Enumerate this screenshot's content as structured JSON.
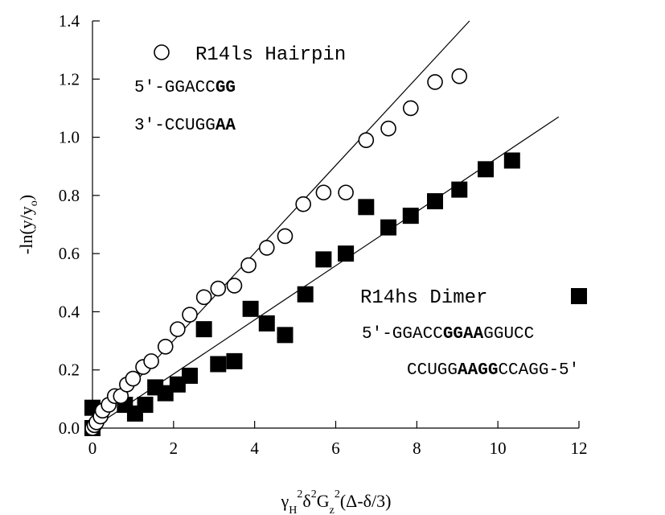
{
  "chart_data": {
    "type": "scatter",
    "title": "",
    "xlabel": {
      "base": "γ",
      "sub1": "H",
      "sup1": "2",
      "mid1": "δ",
      "sup2": "2",
      "mid2": "G",
      "sub2": "z",
      "sup3": "2",
      "tail": "(Δ-δ/3)"
    },
    "ylabel": {
      "base": "-ln(y/y",
      "sub": "o",
      "tail": ")"
    },
    "xlim": [
      0,
      12
    ],
    "ylim": [
      0,
      1.4
    ],
    "x_ticks": [
      "0",
      "2",
      "4",
      "6",
      "8",
      "10",
      "12"
    ],
    "y_ticks": [
      "0.0",
      "0.2",
      "0.4",
      "0.6",
      "0.8",
      "1.0",
      "1.2",
      "1.4"
    ],
    "grid": false,
    "series": [
      {
        "name": "R14ls Hairpin",
        "marker": "open-circle",
        "color": "#000000",
        "fit_line": {
          "x": [
            0,
            9.3
          ],
          "y": [
            0,
            1.4
          ]
        },
        "points": [
          [
            0.0,
            0.0
          ],
          [
            0.05,
            0.01
          ],
          [
            0.1,
            0.02
          ],
          [
            0.2,
            0.04
          ],
          [
            0.25,
            0.06
          ],
          [
            0.4,
            0.08
          ],
          [
            0.55,
            0.11
          ],
          [
            0.7,
            0.11
          ],
          [
            0.85,
            0.15
          ],
          [
            1.0,
            0.17
          ],
          [
            1.25,
            0.21
          ],
          [
            1.45,
            0.23
          ],
          [
            1.8,
            0.28
          ],
          [
            2.1,
            0.34
          ],
          [
            2.4,
            0.39
          ],
          [
            2.75,
            0.45
          ],
          [
            3.1,
            0.48
          ],
          [
            3.5,
            0.49
          ],
          [
            3.85,
            0.56
          ],
          [
            4.3,
            0.62
          ],
          [
            4.75,
            0.66
          ],
          [
            5.2,
            0.77
          ],
          [
            5.7,
            0.81
          ],
          [
            6.25,
            0.81
          ],
          [
            6.75,
            0.99
          ],
          [
            7.3,
            1.03
          ],
          [
            7.85,
            1.1
          ],
          [
            8.45,
            1.19
          ],
          [
            9.05,
            1.21
          ]
        ]
      },
      {
        "name": "R14hs Dimer",
        "marker": "filled-square",
        "color": "#000000",
        "fit_line": {
          "x": [
            0,
            11.5
          ],
          "y": [
            0,
            1.07
          ]
        },
        "points": [
          [
            0.0,
            0.0
          ],
          [
            0.0,
            0.07
          ],
          [
            0.8,
            0.08
          ],
          [
            1.05,
            0.05
          ],
          [
            1.3,
            0.08
          ],
          [
            1.55,
            0.14
          ],
          [
            1.8,
            0.12
          ],
          [
            2.1,
            0.15
          ],
          [
            2.4,
            0.18
          ],
          [
            2.75,
            0.34
          ],
          [
            3.1,
            0.22
          ],
          [
            3.5,
            0.23
          ],
          [
            3.9,
            0.41
          ],
          [
            4.3,
            0.36
          ],
          [
            4.75,
            0.32
          ],
          [
            5.25,
            0.46
          ],
          [
            5.7,
            0.58
          ],
          [
            6.25,
            0.6
          ],
          [
            6.75,
            0.76
          ],
          [
            7.3,
            0.69
          ],
          [
            7.85,
            0.73
          ],
          [
            8.45,
            0.78
          ],
          [
            9.05,
            0.82
          ],
          [
            9.7,
            0.89
          ],
          [
            10.35,
            0.92
          ]
        ]
      }
    ]
  },
  "legend": {
    "hairpin_label": "R14ls Hairpin",
    "hairpin_seq_top": {
      "plain": "5'-GGACC",
      "bold": "GG"
    },
    "hairpin_seq_bottom": {
      "plain": "3'-CCUGG",
      "bold": "AA"
    },
    "dimer_label": "R14hs Dimer",
    "dimer_seq_top": {
      "plain1": "5'-GGACC",
      "bold": "GGAA",
      "plain2": "GGUCC"
    },
    "dimer_seq_bottom": {
      "plain1": "CCUGG",
      "bold": "AAGG",
      "plain2": "CCAGG-5'"
    }
  }
}
